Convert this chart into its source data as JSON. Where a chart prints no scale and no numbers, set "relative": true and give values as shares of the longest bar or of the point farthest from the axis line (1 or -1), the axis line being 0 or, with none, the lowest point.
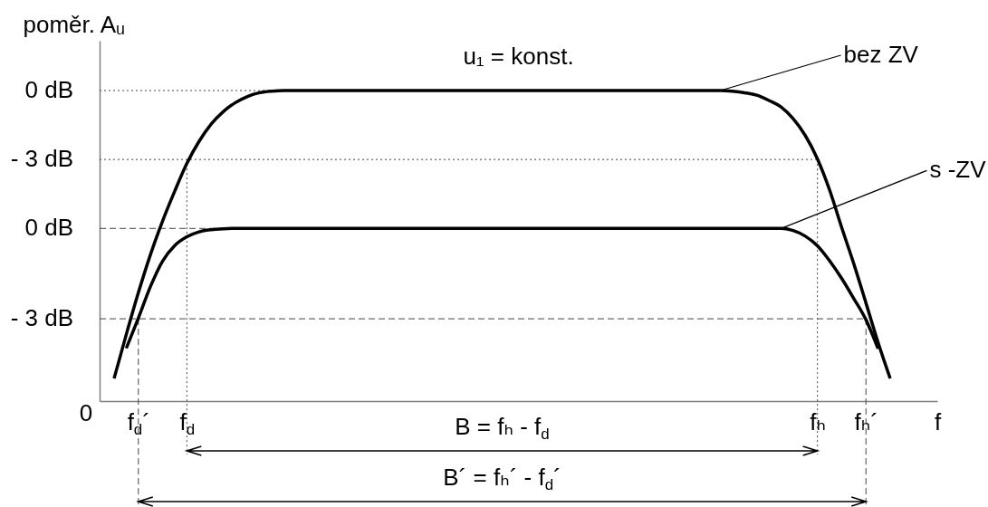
{
  "chart_data": {
    "type": "line",
    "ylabel": "poměr. Aᵤ",
    "xlabel": "f",
    "relative": true,
    "line_style": "solid",
    "annotations": [
      "u₁ = konst.",
      "0",
      "B = fₕ - f$_{d}$",
      "B´ = fₕ´ - f$_{d}$´"
    ],
    "categories": [
      null,
      null,
      "f$_{d}$´",
      null,
      null,
      null,
      "f$_{d}$",
      null,
      null,
      null,
      null,
      null,
      null,
      null,
      null,
      null,
      null,
      null,
      null,
      null,
      null,
      null,
      null,
      null,
      null,
      null,
      null,
      null,
      null,
      null,
      null,
      null,
      null,
      null,
      null,
      null,
      null,
      null,
      null,
      null,
      null,
      null,
      null,
      null,
      null,
      null,
      null,
      null,
      null,
      null,
      null,
      null,
      null,
      null,
      null,
      null,
      null,
      null,
      "fₕ",
      null,
      null,
      null,
      "fₕ´",
      null,
      null
    ],
    "series": [
      {
        "name": "bez ZV",
        "color": "#000000",
        "values": [
          0.073,
          0.214,
          0.349,
          0.472,
          0.58,
          0.676,
          0.765,
          0.836,
          0.892,
          0.932,
          0.961,
          0.981,
          0.993,
          0.998,
          1,
          1,
          1,
          1,
          1,
          1,
          1,
          1,
          1,
          1,
          1,
          1,
          1,
          1,
          1,
          1,
          1,
          1,
          1,
          1,
          1,
          1,
          1,
          1,
          1,
          1,
          1,
          1,
          1,
          1,
          1,
          1,
          1,
          1,
          1,
          1,
          1,
          0.998,
          0.993,
          0.985,
          0.968,
          0.947,
          0.909,
          0.855,
          0.78,
          0.68,
          0.559,
          0.442,
          0.316,
          0.189,
          0.073
        ]
      },
      {
        "name": "s -ZV",
        "color": "#000000",
        "values": [
          null,
          0.17,
          0.267,
          0.369,
          0.451,
          0.501,
          0.529,
          0.545,
          0.552,
          0.555,
          0.556,
          0.556,
          0.556,
          0.556,
          0.556,
          0.556,
          0.556,
          0.556,
          0.556,
          0.556,
          0.556,
          0.556,
          0.556,
          0.556,
          0.556,
          0.556,
          0.556,
          0.556,
          0.556,
          0.556,
          0.556,
          0.556,
          0.556,
          0.556,
          0.556,
          0.556,
          0.556,
          0.556,
          0.556,
          0.556,
          0.556,
          0.556,
          0.556,
          0.556,
          0.556,
          0.556,
          0.556,
          0.556,
          0.556,
          0.556,
          0.556,
          0.556,
          0.556,
          0.556,
          0.556,
          0.556,
          0.549,
          0.531,
          0.5,
          0.452,
          0.395,
          0.33,
          0.262,
          0.169,
          null
        ]
      }
    ],
    "ref_lines": [
      {
        "axis": "y",
        "value": 1,
        "label": "0 dB",
        "line_style": "dotted"
      },
      {
        "axis": "y",
        "value": 0.778,
        "label": "- 3 dB",
        "line_style": "dotted"
      },
      {
        "axis": "y",
        "value": 0.556,
        "label": "0 dB",
        "line_style": "dashed"
      },
      {
        "axis": "y",
        "value": 0.265,
        "label": "- 3 dB",
        "line_style": "dashed"
      },
      {
        "axis": "x",
        "value": "f$_{d}$´",
        "line_style": "dashed"
      },
      {
        "axis": "x",
        "value": "f$_{d}$",
        "line_style": "dotted"
      },
      {
        "axis": "x",
        "value": "fₕ",
        "line_style": "dotted"
      },
      {
        "axis": "x",
        "value": "fₕ´",
        "line_style": "dashed"
      }
    ]
  }
}
